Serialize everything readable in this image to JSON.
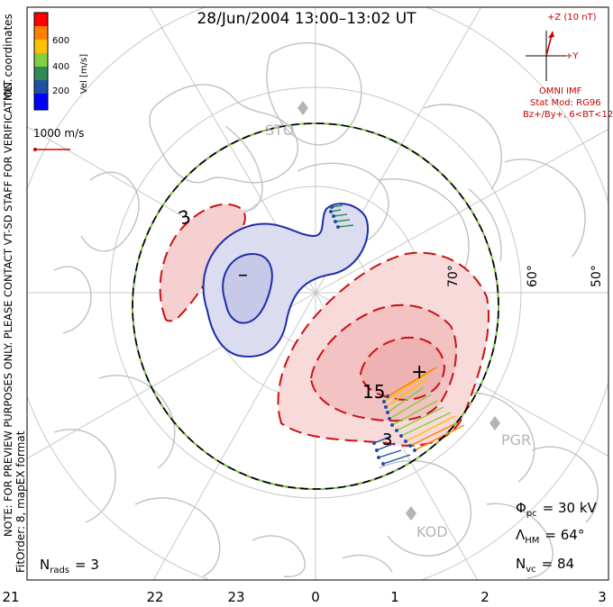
{
  "title": "28/Jun/2004  13:00–13:02  UT",
  "coordinates_label": "MLT coordinates",
  "velocity_legend": {
    "title": "Vel [m/s]",
    "ticks": [
      "600",
      "400",
      "200"
    ],
    "colors": [
      "#ff0000",
      "#ff7f00",
      "#ffc000",
      "#80d040",
      "#2e8b57",
      "#2050a0",
      "#0000ff"
    ]
  },
  "reference_vector": "1000 m/s",
  "preview_notice": "NOTE: FOR PREVIEW PURPOSES ONLY. PLEASE CONTACT VT-SD STAFF FOR VERIFICATION.",
  "fit_info": "FitOrder: 8, mapEX format",
  "imf": {
    "z_label": "+Z (10 nT)",
    "y_label": "+Y",
    "source": "OMNI IMF",
    "stat_mod": "Stat Mod: RG96",
    "conditions": "Bz+/By+, 6<BT<12"
  },
  "stations": [
    "STO",
    "PGR",
    "KOD"
  ],
  "latitude_labels": [
    "70°",
    "60°",
    "50°"
  ],
  "contour_labels": {
    "pos_low": "3",
    "pos_high": "15",
    "pos_edge": "3",
    "min_marker": "–",
    "max_marker": "+"
  },
  "stats": {
    "phi_pc": "Φpc = 30 kV",
    "phi_symbol": "Φ",
    "phi_sub": "pc",
    "phi_value": "= 30 kV",
    "lambda_symbol": "Λ",
    "lambda_sub": "HM",
    "lambda_value": "= 64°",
    "nvc_symbol": "N",
    "nvc_sub": "vc",
    "nvc_value": "= 84",
    "nrads_symbol": "N",
    "nrads_sub": "rads",
    "nrads_value": "= 3"
  },
  "mlt_labels": [
    "21",
    "22",
    "23",
    "0",
    "1",
    "2",
    "3"
  ],
  "colors": {
    "negative_contour": "#1c2fa8",
    "positive_contour": "#cc1111",
    "boundary": "#000000",
    "grid": "#c8c8c8",
    "coast": "#c0c0c0"
  }
}
